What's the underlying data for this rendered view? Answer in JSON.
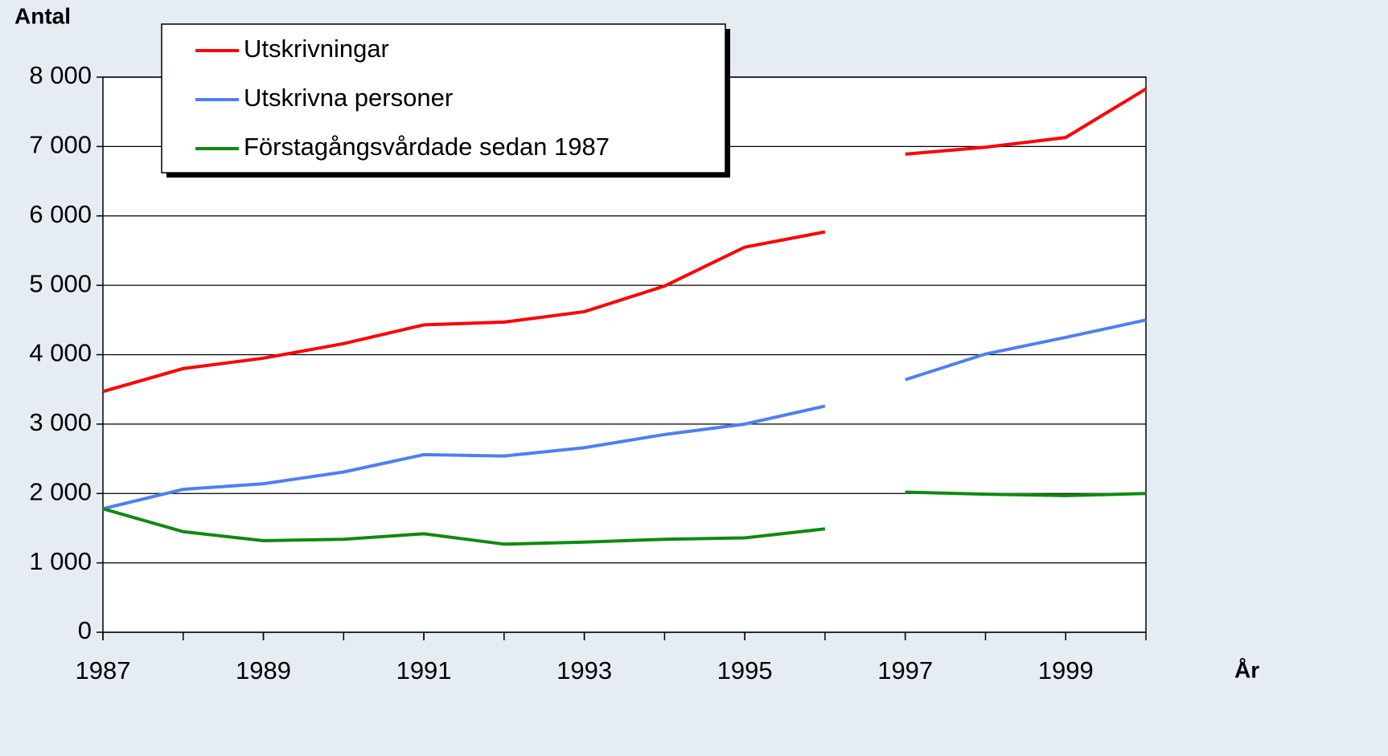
{
  "chart_data": {
    "type": "line",
    "y_label": "Antal",
    "x_label": "År",
    "xlim": [
      1987,
      2000
    ],
    "xticks": [
      1987,
      1989,
      1991,
      1993,
      1995,
      1997,
      1999
    ],
    "ylim": [
      0,
      8000
    ],
    "yticks": [
      0,
      {
        "value": 1000,
        "label": "1 000"
      },
      {
        "value": 2000,
        "label": "2 000"
      },
      {
        "value": 3000,
        "label": "3 000"
      },
      {
        "value": 4000,
        "label": "4 000"
      },
      {
        "value": 5000,
        "label": "5 000"
      },
      {
        "value": 6000,
        "label": "6 000"
      },
      {
        "value": 7000,
        "label": "7 000"
      },
      {
        "value": 8000,
        "label": "8 000"
      }
    ],
    "grid": true,
    "series": [
      {
        "name": "Utskrivningar",
        "color": "#ff0000",
        "segments": [
          {
            "x": [
              1987,
              1988,
              1989,
              1990,
              1991,
              1992,
              1993,
              1994,
              1995,
              1996
            ],
            "values": [
              3470,
              3800,
              3950,
              4160,
              4430,
              4470,
              4620,
              4990,
              5550,
              5770
            ]
          },
          {
            "x": [
              1997,
              1998,
              1999,
              2000
            ],
            "values": [
              6890,
              6990,
              7130,
              7830
            ]
          }
        ]
      },
      {
        "name": "Utskrivna personer",
        "color": "#4f7ff0",
        "segments": [
          {
            "x": [
              1987,
              1988,
              1989,
              1990,
              1991,
              1992,
              1993,
              1994,
              1995,
              1996
            ],
            "values": [
              1780,
              2060,
              2140,
              2310,
              2560,
              2540,
              2660,
              2850,
              3000,
              3260
            ]
          },
          {
            "x": [
              1997,
              1998,
              1999,
              2000
            ],
            "values": [
              3640,
              4010,
              4250,
              4500
            ]
          }
        ]
      },
      {
        "name": "Förstagångsvårdade sedan 1987",
        "color": "#0f8a0f",
        "segments": [
          {
            "x": [
              1987,
              1988,
              1989,
              1990,
              1991,
              1992,
              1993,
              1994,
              1995,
              1996
            ],
            "values": [
              1780,
              1450,
              1320,
              1340,
              1420,
              1270,
              1300,
              1340,
              1360,
              1490
            ]
          },
          {
            "x": [
              1997,
              1998,
              1999,
              2000
            ],
            "values": [
              2020,
              1990,
              1970,
              2000
            ]
          }
        ]
      }
    ]
  }
}
